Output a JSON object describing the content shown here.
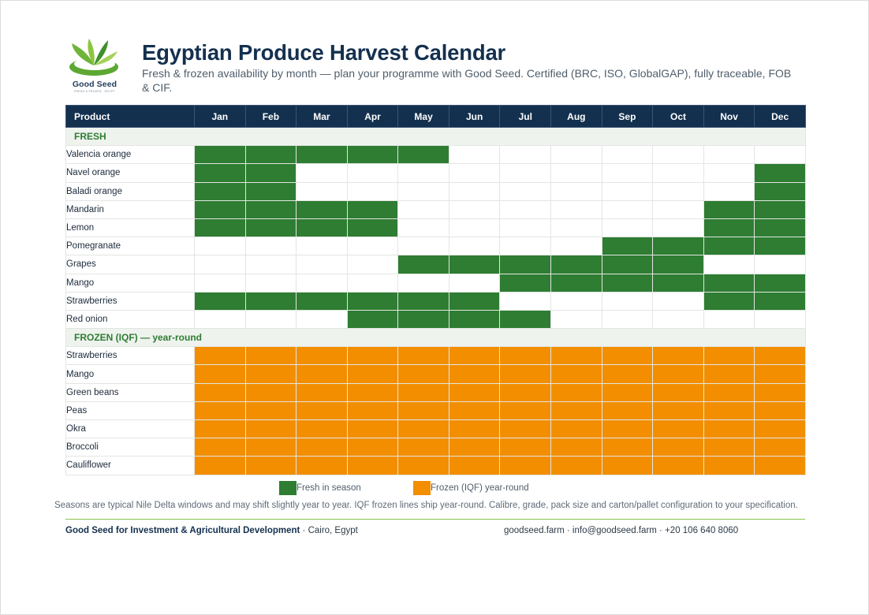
{
  "header": {
    "logo_text": "Good Seed",
    "logo_tagline": "FRESH & FROZEN · EGYPT",
    "title": "Egyptian Produce Harvest Calendar",
    "subtitle": "Fresh & frozen availability by month — plan your programme with Good Seed. Certified (BRC, ISO, GlobalGAP), fully traceable, FOB & CIF."
  },
  "colors": {
    "navy": "#14304f",
    "fresh": "#2e7d32",
    "frozen": "#f28e00",
    "section_bg": "#eef3ee"
  },
  "table": {
    "product_header": "Product",
    "months": [
      "Jan",
      "Feb",
      "Mar",
      "Apr",
      "May",
      "Jun",
      "Jul",
      "Aug",
      "Sep",
      "Oct",
      "Nov",
      "Dec"
    ],
    "sections": [
      {
        "label": "FRESH",
        "status": "fresh",
        "rows": [
          {
            "product": "Valencia orange",
            "months": [
              1,
              1,
              1,
              1,
              1,
              0,
              0,
              0,
              0,
              0,
              0,
              0
            ]
          },
          {
            "product": "Navel orange",
            "months": [
              1,
              1,
              0,
              0,
              0,
              0,
              0,
              0,
              0,
              0,
              0,
              1
            ]
          },
          {
            "product": "Baladi orange",
            "months": [
              1,
              1,
              0,
              0,
              0,
              0,
              0,
              0,
              0,
              0,
              0,
              1
            ]
          },
          {
            "product": "Mandarin",
            "months": [
              1,
              1,
              1,
              1,
              0,
              0,
              0,
              0,
              0,
              0,
              1,
              1
            ]
          },
          {
            "product": "Lemon",
            "months": [
              1,
              1,
              1,
              1,
              0,
              0,
              0,
              0,
              0,
              0,
              1,
              1
            ]
          },
          {
            "product": "Pomegranate",
            "months": [
              0,
              0,
              0,
              0,
              0,
              0,
              0,
              0,
              1,
              1,
              1,
              1
            ]
          },
          {
            "product": "Grapes",
            "months": [
              0,
              0,
              0,
              0,
              1,
              1,
              1,
              1,
              1,
              1,
              0,
              0
            ]
          },
          {
            "product": "Mango",
            "months": [
              0,
              0,
              0,
              0,
              0,
              0,
              1,
              1,
              1,
              1,
              1,
              1
            ]
          },
          {
            "product": "Strawberries",
            "months": [
              1,
              1,
              1,
              1,
              1,
              1,
              0,
              0,
              0,
              0,
              1,
              1
            ]
          },
          {
            "product": "Red onion",
            "months": [
              0,
              0,
              0,
              1,
              1,
              1,
              1,
              0,
              0,
              0,
              0,
              0
            ]
          }
        ]
      },
      {
        "label": "FROZEN (IQF) — year-round",
        "status": "frozen",
        "rows": [
          {
            "product": "Strawberries",
            "months": [
              1,
              1,
              1,
              1,
              1,
              1,
              1,
              1,
              1,
              1,
              1,
              1
            ]
          },
          {
            "product": "Mango",
            "months": [
              1,
              1,
              1,
              1,
              1,
              1,
              1,
              1,
              1,
              1,
              1,
              1
            ]
          },
          {
            "product": "Green beans",
            "months": [
              1,
              1,
              1,
              1,
              1,
              1,
              1,
              1,
              1,
              1,
              1,
              1
            ]
          },
          {
            "product": "Peas",
            "months": [
              1,
              1,
              1,
              1,
              1,
              1,
              1,
              1,
              1,
              1,
              1,
              1
            ]
          },
          {
            "product": "Okra",
            "months": [
              1,
              1,
              1,
              1,
              1,
              1,
              1,
              1,
              1,
              1,
              1,
              1
            ]
          },
          {
            "product": "Broccoli",
            "months": [
              1,
              1,
              1,
              1,
              1,
              1,
              1,
              1,
              1,
              1,
              1,
              1
            ]
          },
          {
            "product": "Cauliflower",
            "months": [
              1,
              1,
              1,
              1,
              1,
              1,
              1,
              1,
              1,
              1,
              1,
              1
            ]
          }
        ]
      }
    ]
  },
  "legend": {
    "fresh": "Fresh in season",
    "frozen": "Frozen (IQF) year-round"
  },
  "note": "Seasons are typical Nile Delta windows and may shift slightly year to year. IQF frozen lines ship year-round. Calibre, grade, pack size and carton/pallet configuration to your specification.",
  "footer": {
    "company": "Good Seed for Investment & Agricultural Development",
    "location": " · Cairo, Egypt",
    "contact": "goodseed.farm · info@goodseed.farm · +20 106 640 8060"
  }
}
